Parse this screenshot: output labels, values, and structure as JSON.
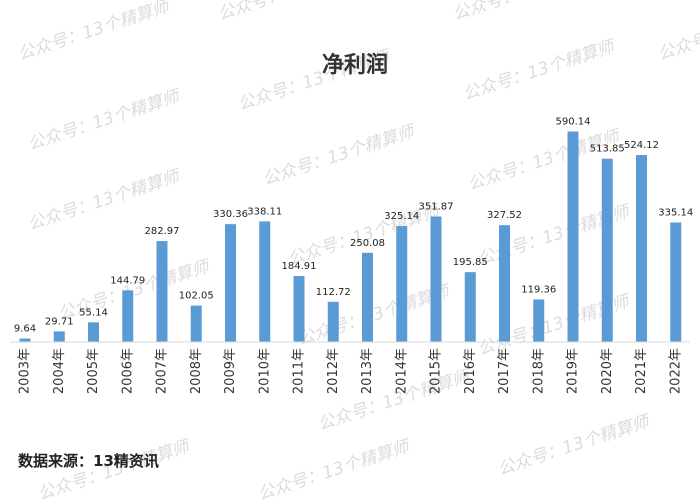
{
  "chart_data": {
    "type": "bar",
    "title": "净利润",
    "xlabel": "",
    "ylabel": "",
    "categories": [
      "2003年",
      "2004年",
      "2005年",
      "2006年",
      "2007年",
      "2008年",
      "2009年",
      "2010年",
      "2011年",
      "2012年",
      "2013年",
      "2014年",
      "2015年",
      "2016年",
      "2017年",
      "2018年",
      "2019年",
      "2020年",
      "2021年",
      "2022年"
    ],
    "values": [
      9.64,
      29.71,
      55.14,
      144.79,
      282.97,
      102.05,
      330.36,
      338.11,
      184.91,
      112.72,
      250.08,
      325.14,
      351.87,
      195.85,
      327.52,
      119.36,
      590.14,
      513.85,
      524.12,
      335.14
    ],
    "data_labels": [
      "9.64",
      "29.71",
      "55.14",
      "144.79",
      "282.97",
      "102.05",
      "330.36",
      "338.11",
      "184.91",
      "112.72",
      "250.08",
      "325.14",
      "351.87",
      "195.85",
      "327.52",
      "119.36",
      "590.14",
      "513.85",
      "524.12",
      "335.14"
    ],
    "ylim": [
      0,
      600
    ],
    "grid": false,
    "legend": "none",
    "bar_color": "#5b9bd5"
  },
  "source_text": "数据来源：13精资讯",
  "watermark_text": "公众号：13个精算师"
}
